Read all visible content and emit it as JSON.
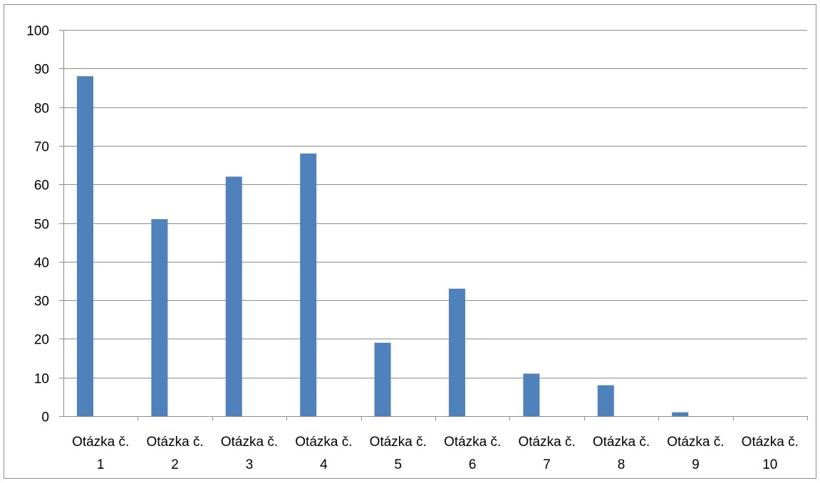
{
  "chart_data": {
    "type": "bar",
    "title": "",
    "xlabel": "",
    "ylabel": "",
    "categories": [
      [
        "Otázka č.",
        "1"
      ],
      [
        "Otázka č.",
        "2"
      ],
      [
        "Otázka č.",
        "3"
      ],
      [
        "Otázka č.",
        "4"
      ],
      [
        "Otázka č.",
        "5"
      ],
      [
        "Otázka č.",
        "6"
      ],
      [
        "Otázka č.",
        "7"
      ],
      [
        "Otázka č.",
        "8"
      ],
      [
        "Otázka č.",
        "9"
      ],
      [
        "Otázka č.",
        "10"
      ]
    ],
    "values": [
      88,
      51,
      62,
      68,
      19,
      33,
      11,
      8,
      1,
      0
    ],
    "ylim": [
      0,
      100
    ],
    "yticks": [
      "0",
      "10",
      "20",
      "30",
      "40",
      "50",
      "60",
      "70",
      "80",
      "90",
      "100"
    ],
    "grid": true,
    "legend": "none",
    "colors": {
      "bar": "#4f81bd",
      "grid": "#8c8c8c",
      "axis": "#8c8c8c"
    }
  }
}
